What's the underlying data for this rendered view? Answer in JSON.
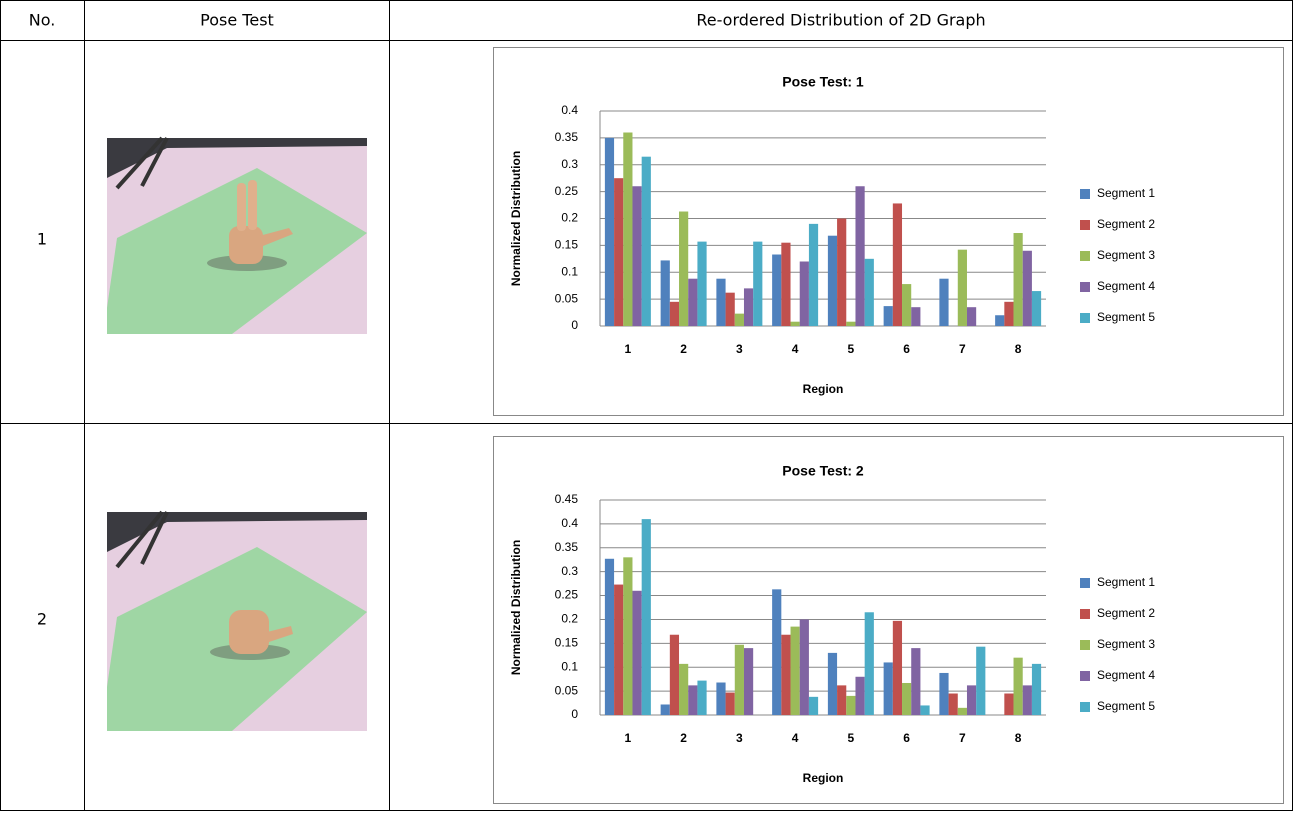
{
  "table": {
    "header": [
      "No.",
      "Pose Test",
      "Re-ordered Distribution of 2D Graph"
    ],
    "rows": [
      [
        "1"
      ],
      [
        "2"
      ]
    ]
  },
  "chart_data": [
    {
      "type": "bar",
      "title": "Pose Test: 1",
      "x_label": "Region",
      "y_label": "Normalized Distribution",
      "categories": [
        "1",
        "2",
        "3",
        "4",
        "5",
        "6",
        "7",
        "8"
      ],
      "series": [
        {
          "name": "Segment 1",
          "color": "#4f81bd",
          "values": [
            0.35,
            0.122,
            0.088,
            0.133,
            0.168,
            0.037,
            0.088,
            0.02
          ]
        },
        {
          "name": "Segment 2",
          "color": "#c0504d",
          "values": [
            0.275,
            0.045,
            0.062,
            0.155,
            0.2,
            0.228,
            0,
            0.045
          ]
        },
        {
          "name": "Segment 3",
          "color": "#9bbb59",
          "values": [
            0.36,
            0.213,
            0.023,
            0.008,
            0.008,
            0.078,
            0.142,
            0.173
          ]
        },
        {
          "name": "Segment 4",
          "color": "#8064a2",
          "values": [
            0.26,
            0.088,
            0.07,
            0.12,
            0.26,
            0.035,
            0.035,
            0.14
          ]
        },
        {
          "name": "Segment 5",
          "color": "#4bacc6",
          "values": [
            0.315,
            0.157,
            0.157,
            0.19,
            0.125,
            0,
            0,
            0.065
          ]
        }
      ],
      "ylim": [
        0,
        0.4
      ],
      "yticks": [
        0,
        0.05,
        0.1,
        0.15,
        0.2,
        0.25,
        0.3,
        0.35,
        0.4
      ],
      "grid": true,
      "legend": "right"
    },
    {
      "type": "bar",
      "title": "Pose Test: 2",
      "x_label": "Region",
      "y_label": "Normalized Distribution",
      "categories": [
        "1",
        "2",
        "3",
        "4",
        "5",
        "6",
        "7",
        "8"
      ],
      "series": [
        {
          "name": "Segment 1",
          "color": "#4f81bd",
          "values": [
            0.327,
            0.022,
            0.068,
            0.263,
            0.13,
            0.11,
            0.088,
            0
          ]
        },
        {
          "name": "Segment 2",
          "color": "#c0504d",
          "values": [
            0.273,
            0.168,
            0.047,
            0.168,
            0.062,
            0.197,
            0.045,
            0.045
          ]
        },
        {
          "name": "Segment 3",
          "color": "#9bbb59",
          "values": [
            0.33,
            0.107,
            0.147,
            0.185,
            0.04,
            0.067,
            0.015,
            0.12
          ]
        },
        {
          "name": "Segment 4",
          "color": "#8064a2",
          "values": [
            0.26,
            0.062,
            0.14,
            0.2,
            0.08,
            0.14,
            0.062,
            0.062
          ]
        },
        {
          "name": "Segment 5",
          "color": "#4bacc6",
          "values": [
            0.41,
            0.072,
            0,
            0.038,
            0.215,
            0.02,
            0.143,
            0.107
          ]
        }
      ],
      "ylim": [
        0,
        0.45
      ],
      "yticks": [
        0,
        0.05,
        0.1,
        0.15,
        0.2,
        0.25,
        0.3,
        0.35,
        0.4,
        0.45
      ],
      "grid": true,
      "legend": "right"
    }
  ]
}
